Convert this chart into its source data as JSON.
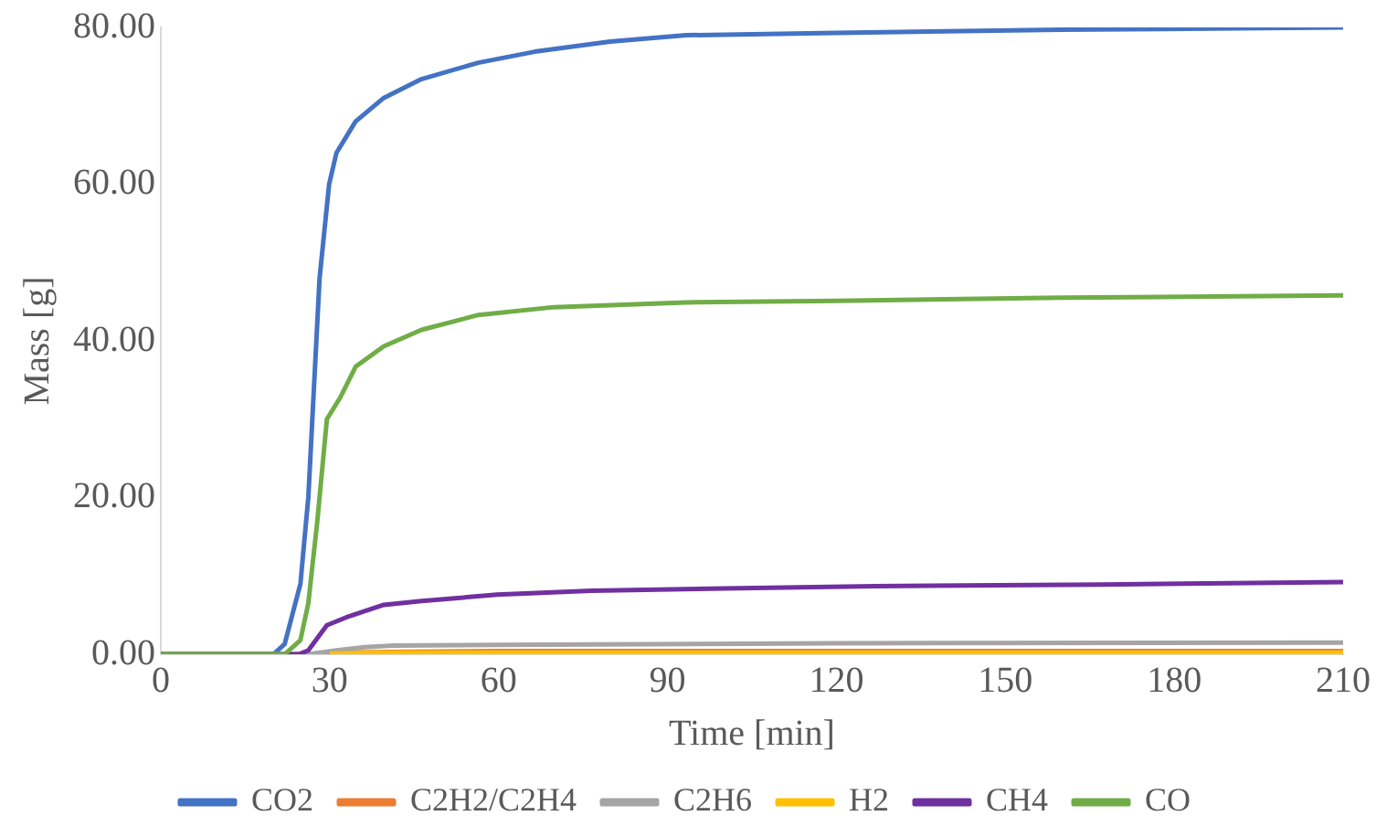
{
  "chart_data": {
    "type": "line",
    "xlabel": "Time [min]",
    "ylabel": "Mass [g]",
    "xlim": [
      0,
      210
    ],
    "xticks": [
      0,
      30,
      60,
      90,
      120,
      150,
      180,
      210
    ],
    "ylim": [
      0,
      80
    ],
    "yticks": [
      {
        "value": 0,
        "label": "0.00"
      },
      {
        "value": 20,
        "label": "20.00"
      },
      {
        "value": 40,
        "label": "40.00"
      },
      {
        "value": 60,
        "label": "60.00"
      },
      {
        "value": 80,
        "label": "80.00"
      }
    ],
    "grid": false,
    "legend": "bottom",
    "marker": "none",
    "line_style": "solid",
    "series": [
      {
        "name": "CO2",
        "color": "#4472c4",
        "x": [
          0,
          20,
          22,
          24.8,
          26.2,
          28.2,
          29.9,
          31.2,
          34.6,
          39.6,
          46.3,
          56.4,
          66.4,
          79.8,
          93.3,
          120,
          160,
          210
        ],
        "values": [
          0,
          0,
          1.3,
          9,
          20,
          48,
          60,
          64,
          68,
          71,
          73.4,
          75.5,
          76.9,
          78.2,
          79,
          79.3,
          79.7,
          80
        ]
      },
      {
        "name": "C2H2/C2H4",
        "color": "#ed7d31",
        "x": [
          0,
          24,
          28,
          32,
          40,
          60,
          100,
          210
        ],
        "values": [
          0,
          0,
          0.1,
          0.2,
          0.3,
          0.4,
          0.4,
          0.4
        ]
      },
      {
        "name": "C2H6",
        "color": "#a5a5a5",
        "x": [
          0,
          26.2,
          31.2,
          36.2,
          41.3,
          59.7,
          120,
          210
        ],
        "values": [
          0,
          0,
          0.5,
          0.9,
          1.1,
          1.2,
          1.4,
          1.5
        ]
      },
      {
        "name": "H2",
        "color": "#ffc000",
        "x": [
          30,
          40,
          60,
          210
        ],
        "values": [
          0.1,
          0.2,
          0.2,
          0.2
        ]
      },
      {
        "name": "CH4",
        "color": "#7030a0",
        "x": [
          0,
          24.5,
          26.2,
          29.5,
          32.9,
          39.6,
          46.3,
          59.7,
          76.5,
          100,
          126.8,
          167,
          210
        ],
        "values": [
          0,
          0,
          0.5,
          3.7,
          4.7,
          6.3,
          6.8,
          7.6,
          8.1,
          8.4,
          8.7,
          8.9,
          9.2
        ]
      },
      {
        "name": "CO",
        "color": "#70ad47",
        "x": [
          0,
          22,
          24.8,
          26.2,
          27.8,
          29.5,
          31.9,
          34.6,
          39.6,
          46.3,
          56.4,
          69.8,
          93.3,
          120,
          160,
          210
        ],
        "values": [
          0,
          0,
          1.8,
          6.5,
          17,
          30,
          32.8,
          36.7,
          39.3,
          41.4,
          43.3,
          44.3,
          44.9,
          45.1,
          45.5,
          45.8
        ]
      }
    ]
  }
}
